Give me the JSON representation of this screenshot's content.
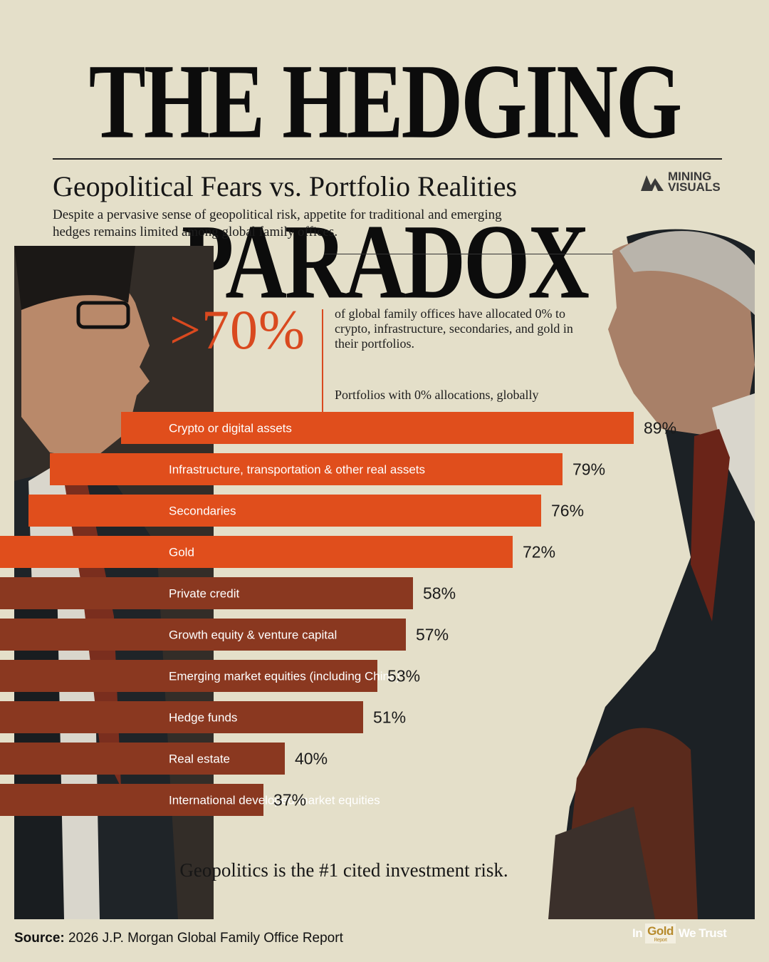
{
  "header": {
    "title": "THE HEDGING PARADOX",
    "subtitle": "Geopolitical Fears vs. Portfolio Realities",
    "logo_line1": "MINING",
    "logo_line2": "VISUALS",
    "description": "Despite a pervasive sense of geopolitical risk, appetite for traditional and emerging hedges remains limited among global family offices."
  },
  "highlight": {
    "stat": ">70%",
    "text": "of global family offices have allocated 0% to crypto, infrastructure, secondaries, and gold in their portfolios."
  },
  "footnote": "Geopolitics is the #1 cited investment risk.",
  "footer": {
    "source_label": "Source:",
    "source_text": "2026 J.P. Morgan Global Family Office Report",
    "brand_in": "In",
    "brand_gold": "Gold",
    "brand_report": "Report",
    "brand_we_trust": "We Trust"
  },
  "colors": {
    "background": "#e4dfc9",
    "highlight_bar": "#e04e1c",
    "standard_bar": "#8a3820",
    "accent": "#d9491f"
  },
  "chart_data": {
    "type": "bar",
    "orientation": "horizontal",
    "title": "Portfolios with 0% allocations, globally",
    "value_suffix": "%",
    "categories": [
      "Crypto or digital assets",
      "Infrastructure, transportation & other real assets",
      "Secondaries",
      "Gold",
      "Private credit",
      "Growth equity & venture capital",
      "Emerging market equities (including China)",
      "Hedge funds",
      "Real estate",
      "International developed market equities"
    ],
    "values": [
      89,
      79,
      76,
      72,
      58,
      57,
      53,
      51,
      40,
      37
    ],
    "highlighted": [
      true,
      true,
      true,
      true,
      false,
      false,
      false,
      false,
      false,
      false
    ],
    "xlim": [
      0,
      100
    ]
  }
}
